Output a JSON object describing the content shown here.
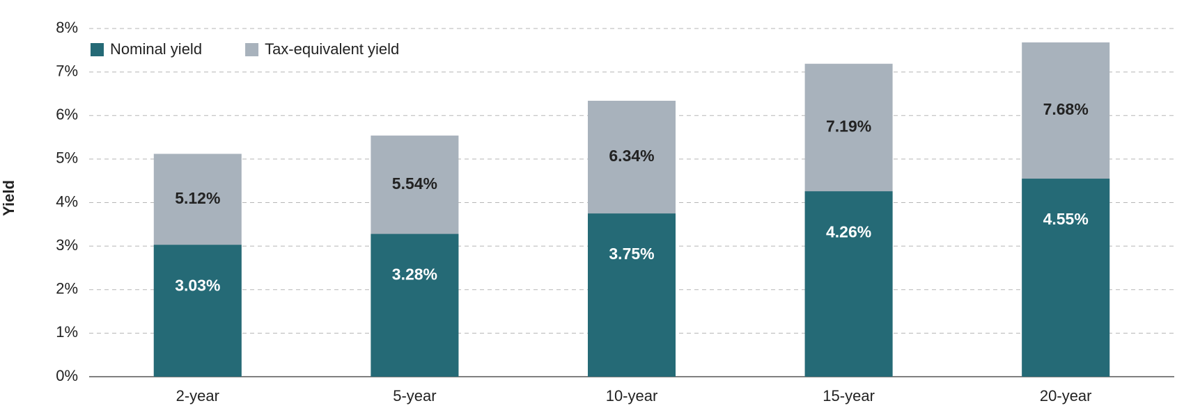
{
  "chart_data": {
    "type": "bar",
    "y_label": "Yield",
    "categories": [
      "2-year",
      "5-year",
      "10-year",
      "15-year",
      "20-year"
    ],
    "series": [
      {
        "name": "Tax-equivalent yield",
        "color": "#a8b2bc",
        "values": [
          5.12,
          5.54,
          6.34,
          7.19,
          7.68
        ],
        "value_labels": [
          "5.12%",
          "5.54%",
          "6.34%",
          "7.19%",
          "7.68%"
        ],
        "label_color": "#222222"
      },
      {
        "name": "Nominal yield",
        "color": "#256a76",
        "values": [
          3.03,
          3.28,
          3.75,
          4.26,
          4.55
        ],
        "value_labels": [
          "3.03%",
          "3.28%",
          "3.75%",
          "4.26%",
          "4.55%"
        ],
        "label_color": "#ffffff"
      }
    ],
    "ylim": [
      0,
      8
    ],
    "yticks": [
      {
        "value": 0,
        "label": "0%"
      },
      {
        "value": 1,
        "label": "1%"
      },
      {
        "value": 2,
        "label": "2%"
      },
      {
        "value": 3,
        "label": "3%"
      },
      {
        "value": 4,
        "label": "4%"
      },
      {
        "value": 5,
        "label": "5%"
      },
      {
        "value": 6,
        "label": "6%"
      },
      {
        "value": 7,
        "label": "7%"
      },
      {
        "value": 8,
        "label": "8%"
      }
    ],
    "grid": true,
    "legend": "top-left"
  }
}
